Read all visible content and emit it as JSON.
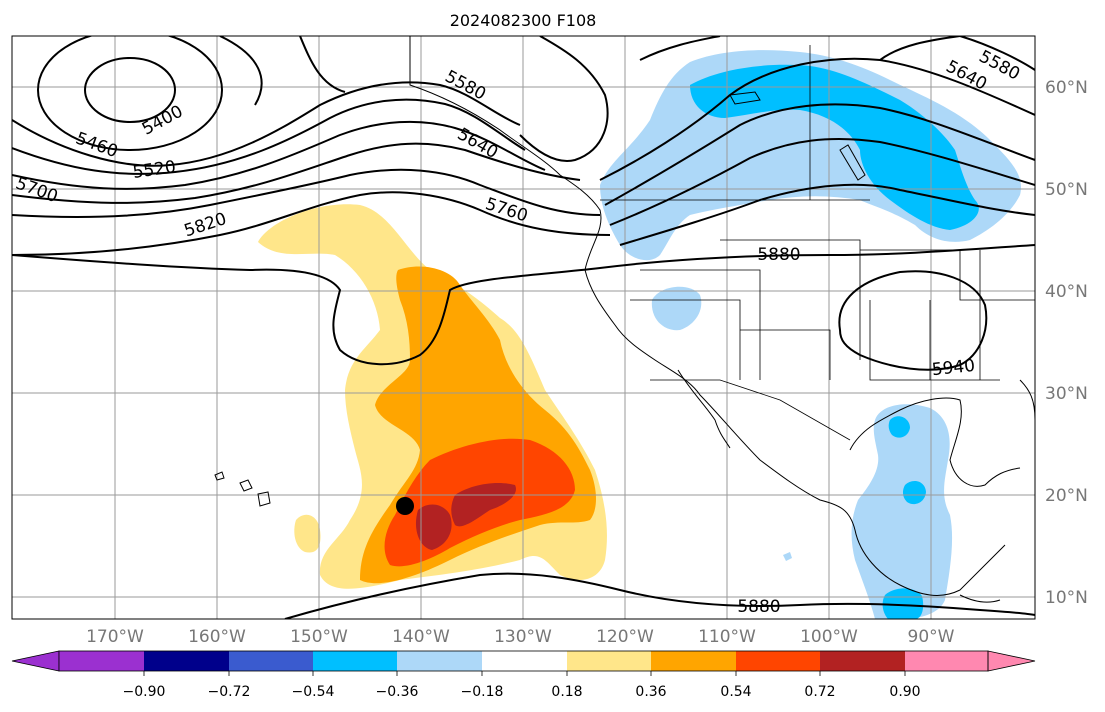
{
  "title": "2024082300 F108",
  "lat_labels": [
    "60°N",
    "50°N",
    "40°N",
    "30°N",
    "20°N",
    "10°N"
  ],
  "lon_labels": [
    "170°W",
    "160°W",
    "150°W",
    "140°W",
    "130°W",
    "120°W",
    "110°W",
    "100°W",
    "90°W"
  ],
  "colorbar": {
    "tick_labels": [
      "−0.90",
      "−0.72",
      "−0.54",
      "−0.36",
      "−0.18",
      "0.18",
      "0.36",
      "0.54",
      "0.72",
      "0.90"
    ],
    "colors": [
      "#9b30d0",
      "#00008b",
      "#3a5bcf",
      "#00bfff",
      "#add8f8",
      "#ffffff",
      "#ffe68a",
      "#ffa500",
      "#ff4500",
      "#b22222",
      "#ff88b0"
    ]
  },
  "contour_labels": [
    "5400",
    "5460",
    "5520",
    "5580",
    "5640",
    "5700",
    "5760",
    "5820",
    "5880",
    "5880",
    "5940",
    "5640",
    "5580"
  ],
  "storm_marker": {
    "lat": 19,
    "lon": -141
  }
}
